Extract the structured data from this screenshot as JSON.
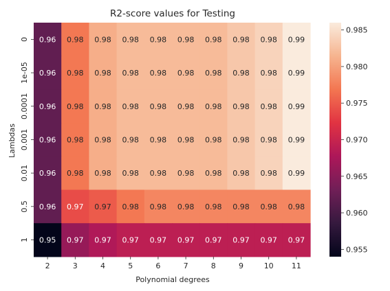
{
  "chart_data": {
    "type": "heatmap",
    "title": "R2-score values for Testing",
    "xlabel": "Polynomial degrees",
    "ylabel": "Lambdas",
    "x_categories": [
      "2",
      "3",
      "4",
      "5",
      "6",
      "7",
      "8",
      "9",
      "10",
      "11"
    ],
    "y_categories": [
      "0",
      "1e-05",
      "0.0001",
      "0.001",
      "0.01",
      "0.5",
      "1"
    ],
    "values": [
      [
        0.962,
        0.977,
        0.981,
        0.982,
        0.982,
        0.982,
        0.982,
        0.983,
        0.984,
        0.986
      ],
      [
        0.962,
        0.977,
        0.981,
        0.982,
        0.982,
        0.982,
        0.982,
        0.983,
        0.984,
        0.986
      ],
      [
        0.962,
        0.977,
        0.981,
        0.982,
        0.982,
        0.982,
        0.982,
        0.983,
        0.984,
        0.986
      ],
      [
        0.962,
        0.977,
        0.981,
        0.982,
        0.982,
        0.982,
        0.982,
        0.983,
        0.984,
        0.986
      ],
      [
        0.962,
        0.977,
        0.981,
        0.982,
        0.982,
        0.982,
        0.982,
        0.983,
        0.984,
        0.986
      ],
      [
        0.962,
        0.974,
        0.975,
        0.977,
        0.978,
        0.978,
        0.978,
        0.978,
        0.978,
        0.978
      ],
      [
        0.954,
        0.966,
        0.968,
        0.969,
        0.969,
        0.969,
        0.969,
        0.969,
        0.969,
        0.969
      ]
    ],
    "annotations": [
      [
        "0.96",
        "0.98",
        "0.98",
        "0.98",
        "0.98",
        "0.98",
        "0.98",
        "0.98",
        "0.98",
        "0.99"
      ],
      [
        "0.96",
        "0.98",
        "0.98",
        "0.98",
        "0.98",
        "0.98",
        "0.98",
        "0.98",
        "0.98",
        "0.99"
      ],
      [
        "0.96",
        "0.98",
        "0.98",
        "0.98",
        "0.98",
        "0.98",
        "0.98",
        "0.98",
        "0.98",
        "0.99"
      ],
      [
        "0.96",
        "0.98",
        "0.98",
        "0.98",
        "0.98",
        "0.98",
        "0.98",
        "0.98",
        "0.98",
        "0.99"
      ],
      [
        "0.96",
        "0.98",
        "0.98",
        "0.98",
        "0.98",
        "0.98",
        "0.98",
        "0.98",
        "0.98",
        "0.99"
      ],
      [
        "0.96",
        "0.97",
        "0.97",
        "0.98",
        "0.98",
        "0.98",
        "0.98",
        "0.98",
        "0.98",
        "0.98"
      ],
      [
        "0.95",
        "0.97",
        "0.97",
        "0.97",
        "0.97",
        "0.97",
        "0.97",
        "0.97",
        "0.97",
        "0.97"
      ]
    ],
    "colorbar": {
      "ticks": [
        "0.955",
        "0.960",
        "0.965",
        "0.970",
        "0.975",
        "0.980",
        "0.985"
      ],
      "vmin": 0.954,
      "vmax": 0.986
    },
    "colormap": "rocket",
    "colormap_stops": [
      "#03051a",
      "#35193e",
      "#701f57",
      "#ad1759",
      "#e13342",
      "#f37651",
      "#f6b48f",
      "#faebdd"
    ],
    "grid": false,
    "legend": "colorbar-right"
  }
}
